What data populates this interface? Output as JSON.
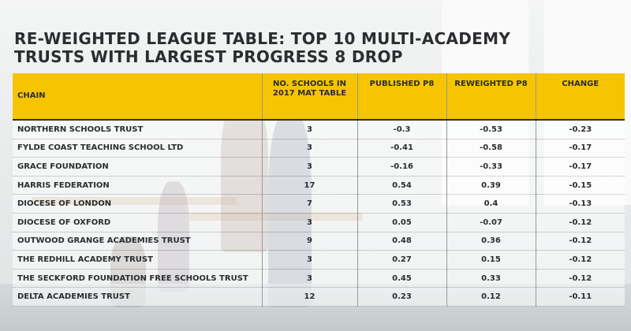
{
  "title_lines": [
    "RE-WEIGHTED LEAGUE TABLE: TOP 10 MULTI-ACADEMY",
    "TRUSTS WITH LARGEST PROGRESS 8 DROP"
  ],
  "chart_data": {
    "type": "table",
    "title": "RE-WEIGHTED LEAGUE TABLE: TOP 10 MULTI-ACADEMY TRUSTS WITH LARGEST PROGRESS 8 DROP",
    "columns": [
      "CHAIN",
      "NO. SCHOOLS IN 2017 MAT TABLE",
      "PUBLISHED P8",
      "REWEIGHTED P8",
      "CHANGE"
    ],
    "rows": [
      [
        "NORTHERN SCHOOLS TRUST",
        "3",
        "-0.3",
        "-0.53",
        "-0.23"
      ],
      [
        "FYLDE COAST TEACHING SCHOOL LTD",
        "3",
        "-0.41",
        "-0.58",
        "-0.17"
      ],
      [
        "GRACE FOUNDATION",
        "3",
        "-0.16",
        "-0.33",
        "-0.17"
      ],
      [
        "HARRIS FEDERATION",
        "17",
        "0.54",
        "0.39",
        "-0.15"
      ],
      [
        "DIOCESE OF LONDON",
        "7",
        "0.53",
        "0.4",
        "-0.13"
      ],
      [
        "DIOCESE OF OXFORD",
        "3",
        "0.05",
        "-0.07",
        "-0.12"
      ],
      [
        "OUTWOOD GRANGE ACADEMIES TRUST",
        "9",
        "0.48",
        "0.36",
        "-0.12"
      ],
      [
        "THE REDHILL ACADEMY TRUST",
        "3",
        "0.27",
        "0.15",
        "-0.12"
      ],
      [
        "THE SECKFORD FOUNDATION FREE SCHOOLS TRUST",
        "3",
        "0.45",
        "0.33",
        "-0.12"
      ],
      [
        "DELTA ACADEMIES TRUST",
        "12",
        "0.23",
        "0.12",
        "-0.11"
      ]
    ]
  },
  "colors": {
    "header_fill": "#f6c400",
    "text": "#2b2d30"
  }
}
